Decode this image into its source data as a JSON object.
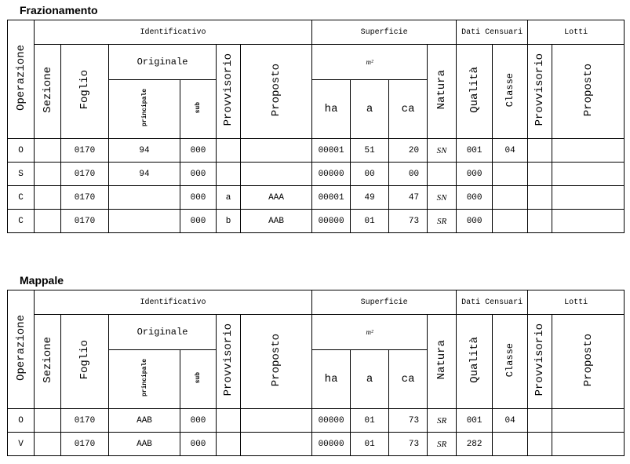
{
  "headers": {
    "operazione": "Operazione",
    "identificativo": "Identificativo",
    "superficie": "Superficie",
    "dati_censuari": "Dati Censuari",
    "lotti": "Lotti",
    "sezione": "Sezione",
    "foglio": "Foglio",
    "originale": "Originale",
    "principale": "principale",
    "sub": "sub",
    "provvisorio": "Provvisorio",
    "proposto": "Proposto",
    "m2": "m²",
    "natura": "Natura",
    "qualita": "Qualità",
    "classe": "Classe",
    "ha": "ha",
    "a": "a",
    "ca": "ca",
    "lotti_provvisorio": "Provvisorio",
    "lotti_proposto": "Proposto"
  },
  "tables": [
    {
      "title": "Frazionamento",
      "rows": [
        [
          "O",
          "",
          "0170",
          "94",
          "000",
          "",
          "",
          "00001",
          "51",
          "20",
          "SN",
          "001",
          "04",
          "",
          ""
        ],
        [
          "S",
          "",
          "0170",
          "94",
          "000",
          "",
          "",
          "00000",
          "00",
          "00",
          "",
          "000",
          "",
          "",
          ""
        ],
        [
          "C",
          "",
          "0170",
          "",
          "000",
          "a",
          "AAA",
          "00001",
          "49",
          "47",
          "SN",
          "000",
          "",
          "",
          ""
        ],
        [
          "C",
          "",
          "0170",
          "",
          "000",
          "b",
          "AAB",
          "00000",
          "01",
          "73",
          "SR",
          "000",
          "",
          "",
          ""
        ]
      ]
    },
    {
      "title": "Mappale",
      "rows": [
        [
          "O",
          "",
          "0170",
          "AAB",
          "000",
          "",
          "",
          "00000",
          "01",
          "73",
          "SR",
          "001",
          "04",
          "",
          ""
        ],
        [
          "V",
          "",
          "0170",
          "AAB",
          "000",
          "",
          "",
          "00000",
          "01",
          "73",
          "SR",
          "282",
          "",
          "",
          ""
        ]
      ]
    }
  ]
}
